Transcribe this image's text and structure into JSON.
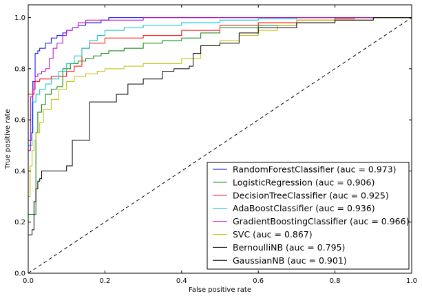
{
  "chart_data": {
    "type": "line",
    "title": "",
    "xlabel": "False positive rate",
    "ylabel": "True positive rate",
    "xlim": [
      0.0,
      1.0
    ],
    "ylim": [
      0.0,
      1.05
    ],
    "xticks": [
      "0.0",
      "0.2",
      "0.4",
      "0.6",
      "0.8",
      "1.0"
    ],
    "yticks": [
      "0.0",
      "0.2",
      "0.4",
      "0.6",
      "0.8",
      "1.0"
    ],
    "grid": false,
    "legend_position": "lower-right",
    "diagonal": {
      "style": "dashed",
      "color": "#000000",
      "x": [
        0.0,
        1.0
      ],
      "y": [
        0.0,
        1.0
      ]
    },
    "series": [
      {
        "name": "RandomForestClassifier  (auc = 0.973)",
        "color": "#0000ff",
        "x": [
          0.0,
          0.003,
          0.006,
          0.009,
          0.012,
          0.018,
          0.025,
          0.03,
          0.045,
          0.06,
          0.075,
          0.09,
          0.1,
          0.115,
          0.13,
          0.15,
          0.17,
          0.19,
          0.21,
          0.25,
          0.3,
          0.4,
          0.5,
          1.0
        ],
        "y": [
          0.5,
          0.52,
          0.52,
          0.52,
          0.55,
          0.75,
          0.86,
          0.87,
          0.88,
          0.9,
          0.92,
          0.93,
          0.94,
          0.95,
          0.96,
          0.97,
          0.98,
          0.98,
          0.99,
          1.0,
          1.0,
          1.0,
          1.0,
          1.0
        ]
      },
      {
        "name": "LogisticRegression  (auc = 0.906)",
        "color": "#008000",
        "x": [
          0.0,
          0.006,
          0.012,
          0.02,
          0.025,
          0.035,
          0.045,
          0.06,
          0.075,
          0.09,
          0.11,
          0.13,
          0.15,
          0.17,
          0.19,
          0.21,
          0.25,
          0.3,
          0.35,
          0.4,
          0.45,
          0.5,
          0.6,
          0.7,
          0.8,
          1.0
        ],
        "y": [
          0.13,
          0.23,
          0.23,
          0.23,
          0.55,
          0.63,
          0.66,
          0.7,
          0.72,
          0.73,
          0.8,
          0.82,
          0.83,
          0.84,
          0.85,
          0.86,
          0.87,
          0.88,
          0.9,
          0.91,
          0.92,
          0.94,
          0.96,
          0.97,
          0.98,
          1.0
        ]
      },
      {
        "name": "DecisionTreeClassifier  (auc = 0.925)",
        "color": "#ff0000",
        "x": [
          0.0,
          0.015,
          0.025,
          0.03,
          0.06,
          0.1,
          0.12,
          0.14,
          0.16,
          0.2,
          0.3,
          0.4,
          0.5,
          0.6,
          0.7,
          0.8,
          0.85,
          1.0
        ],
        "y": [
          0.09,
          0.7,
          0.75,
          0.75,
          0.76,
          0.77,
          0.79,
          0.81,
          0.88,
          0.9,
          0.92,
          0.93,
          0.95,
          0.97,
          0.98,
          0.99,
          0.995,
          1.0
        ]
      },
      {
        "name": "AdaBoostClassifier  (auc = 0.936)",
        "color": "#00bfbf",
        "x": [
          0.0,
          0.01,
          0.02,
          0.03,
          0.045,
          0.06,
          0.08,
          0.1,
          0.12,
          0.14,
          0.16,
          0.18,
          0.2,
          0.25,
          0.3,
          0.4,
          0.5,
          0.6,
          0.7,
          0.8,
          1.0
        ],
        "y": [
          0.1,
          0.5,
          0.67,
          0.7,
          0.72,
          0.74,
          0.76,
          0.79,
          0.82,
          0.85,
          0.88,
          0.91,
          0.93,
          0.95,
          0.96,
          0.97,
          0.98,
          0.99,
          0.995,
          1.0,
          1.0
        ]
      },
      {
        "name": "GradientBoostingClassifier  (auc = 0.966)",
        "color": "#bf00bf",
        "x": [
          0.0,
          0.006,
          0.012,
          0.018,
          0.025,
          0.035,
          0.045,
          0.055,
          0.065,
          0.075,
          0.09,
          0.1,
          0.115,
          0.13,
          0.15,
          0.2,
          0.3,
          0.4,
          0.5,
          0.6,
          0.8,
          1.0
        ],
        "y": [
          0.11,
          0.48,
          0.69,
          0.72,
          0.77,
          0.78,
          0.79,
          0.8,
          0.84,
          0.88,
          0.9,
          0.93,
          0.95,
          0.96,
          0.98,
          0.99,
          0.99,
          1.0,
          1.0,
          1.0,
          1.0,
          1.0
        ]
      },
      {
        "name": "SVC  (auc = 0.867)",
        "color": "#bfbf00",
        "x": [
          0.0,
          0.005,
          0.01,
          0.015,
          0.02,
          0.03,
          0.04,
          0.06,
          0.08,
          0.1,
          0.12,
          0.15,
          0.18,
          0.2,
          0.25,
          0.3,
          0.35,
          0.4,
          0.45,
          0.5,
          0.55,
          0.6,
          0.65,
          0.7,
          0.8,
          0.9,
          1.0
        ],
        "y": [
          0.05,
          0.3,
          0.42,
          0.48,
          0.52,
          0.55,
          0.59,
          0.64,
          0.68,
          0.72,
          0.75,
          0.77,
          0.78,
          0.79,
          0.8,
          0.81,
          0.82,
          0.82,
          0.84,
          0.89,
          0.91,
          0.93,
          0.95,
          0.97,
          0.99,
          0.99,
          1.0
        ]
      },
      {
        "name": "BernoulliNB  (auc = 0.795)",
        "color": "#000000",
        "x": [
          0.0,
          0.01,
          0.015,
          0.02,
          0.025,
          0.03,
          0.035,
          0.045,
          0.05,
          0.1,
          0.115,
          0.16,
          0.23,
          0.26,
          0.3,
          0.35,
          0.38,
          0.42,
          0.43,
          0.45,
          0.5,
          0.55,
          0.6,
          0.7,
          0.8,
          0.9,
          1.0
        ],
        "y": [
          0.11,
          0.15,
          0.17,
          0.28,
          0.33,
          0.36,
          0.37,
          0.4,
          0.4,
          0.4,
          0.42,
          0.52,
          0.67,
          0.7,
          0.74,
          0.76,
          0.79,
          0.8,
          0.81,
          0.86,
          0.89,
          0.9,
          0.94,
          0.96,
          0.98,
          0.99,
          1.0
        ]
      },
      {
        "name": "GaussianNB  (auc = 0.901)",
        "color": "#000000",
        "x": [],
        "y": []
      }
    ]
  }
}
